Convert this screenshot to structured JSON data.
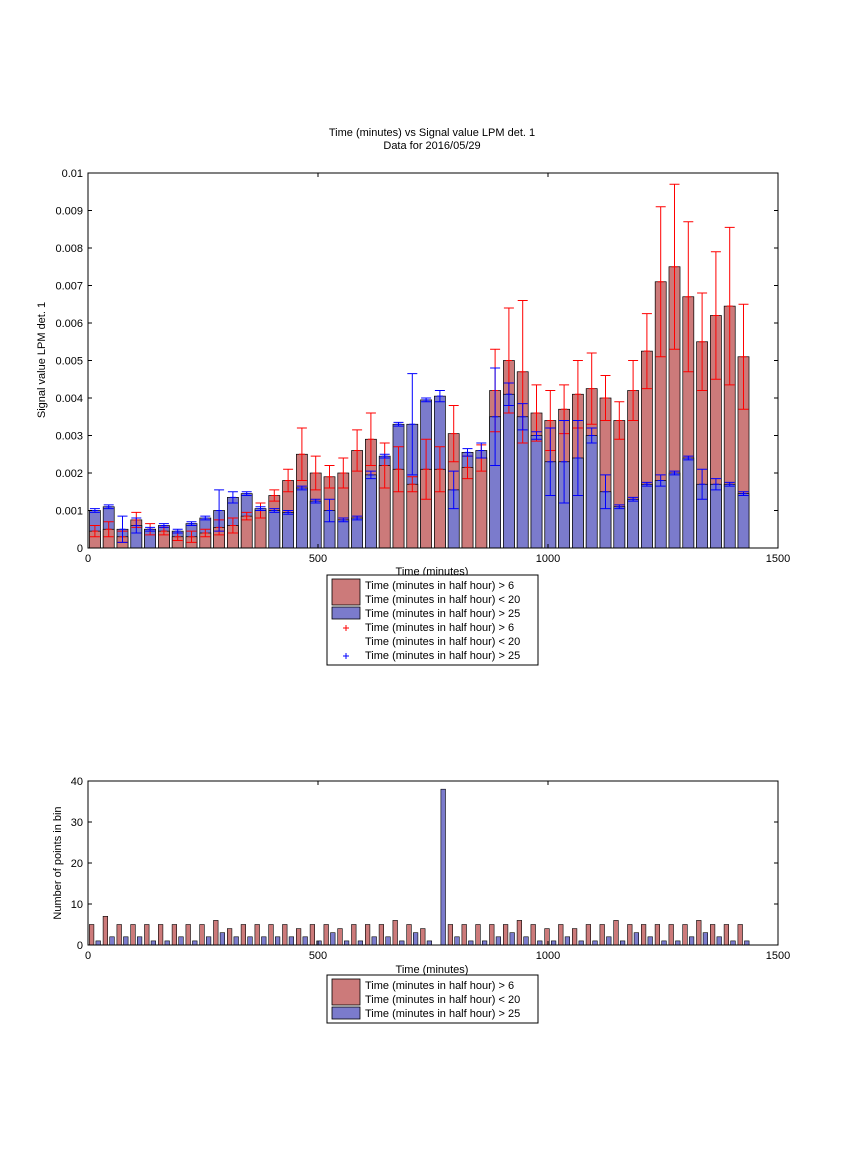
{
  "chart_data": [
    {
      "type": "bar",
      "title": "Time (minutes) vs Signal value LPM det. 1",
      "subtitle": "Data for 2016/05/29",
      "xlabel": "Time (minutes)",
      "ylabel": "Signal value LPM det. 1",
      "xlim": [
        0,
        1500
      ],
      "ylim": [
        0,
        0.01
      ],
      "xticks": [
        0,
        500,
        1000,
        1500
      ],
      "yticks": [
        0,
        0.001,
        0.002,
        0.003,
        0.004,
        0.005,
        0.006,
        0.007,
        0.008,
        0.009,
        0.01
      ],
      "ytick_labels": [
        "0",
        "0.001",
        "0.002",
        "0.003",
        "0.004",
        "0.005",
        "0.006",
        "0.007",
        "0.008",
        "0.009",
        "0.01"
      ],
      "legend_position": "below",
      "legend": [
        {
          "kind": "patch",
          "color": "#cc7a7a",
          "lines": [
            "Time (minutes in half hour) > 6",
            "Time (minutes in half hour) < 20"
          ]
        },
        {
          "kind": "patch",
          "color": "#7b7bcc",
          "lines": [
            "Time (minutes in half hour) > 25"
          ]
        },
        {
          "kind": "marker",
          "color": "#ff0000",
          "lines": [
            "Time (minutes in half hour) > 6",
            "Time (minutes in half hour) < 20"
          ]
        },
        {
          "kind": "marker",
          "color": "#0000ff",
          "lines": [
            "Time (minutes in half hour) > 25"
          ]
        }
      ],
      "x": [
        15,
        45,
        75,
        105,
        135,
        165,
        195,
        225,
        255,
        285,
        315,
        345,
        375,
        405,
        435,
        465,
        495,
        525,
        555,
        585,
        615,
        645,
        675,
        705,
        735,
        765,
        795,
        825,
        855,
        885,
        915,
        945,
        975,
        1005,
        1035,
        1065,
        1095,
        1125,
        1155,
        1185,
        1215,
        1245,
        1275,
        1305,
        1335,
        1365,
        1395,
        1425
      ],
      "series": [
        {
          "name": "Time (minutes in half hour) > 6\nTime (minutes in half hour) < 20",
          "color": "#cc7a7a",
          "error_color": "#ff0000",
          "values": [
            0.00045,
            0.0005,
            0.0003,
            0.00075,
            0.0005,
            0.00045,
            0.0003,
            0.0003,
            0.0004,
            0.00055,
            0.0006,
            0.00085,
            0.001,
            0.0014,
            0.0018,
            0.0025,
            0.002,
            0.0019,
            0.002,
            0.0026,
            0.0029,
            0.0022,
            0.0021,
            0.0017,
            0.0021,
            0.0021,
            0.00305,
            0.00215,
            0.0024,
            0.0042,
            0.005,
            0.0047,
            0.0036,
            0.0034,
            0.0037,
            0.0041,
            0.00425,
            0.004,
            0.0034,
            0.0042,
            0.00525,
            0.0071,
            0.0075,
            0.0067,
            0.0055,
            0.0062,
            0.00645,
            0.0051
          ],
          "errors": [
            0.00015,
            0.0002,
            0.00015,
            0.0002,
            0.00015,
            0.0001,
            0.0001,
            0.00015,
            0.0001,
            0.0002,
            0.0002,
            0.0001,
            0.0002,
            0.00015,
            0.0003,
            0.0007,
            0.00045,
            0.0003,
            0.0004,
            0.00055,
            0.0007,
            0.0006,
            0.0006,
            0.0002,
            0.0008,
            0.0006,
            0.00075,
            0.0003,
            0.00035,
            0.0011,
            0.0014,
            0.0019,
            0.00075,
            0.0008,
            0.00065,
            0.0009,
            0.00095,
            0.0006,
            0.0005,
            0.0008,
            0.001,
            0.002,
            0.0022,
            0.002,
            0.0013,
            0.0017,
            0.0021,
            0.0014
          ]
        },
        {
          "name": "Time (minutes in half hour) > 25",
          "color": "#7b7bcc",
          "error_color": "#0000ff",
          "values": [
            0.001,
            0.0011,
            0.0005,
            0.0006,
            0.0005,
            0.0006,
            0.00045,
            0.00065,
            0.0008,
            0.001,
            0.00135,
            0.00145,
            0.00105,
            0.001,
            0.00095,
            0.0016,
            0.00125,
            0.001,
            0.00075,
            0.0008,
            0.00195,
            0.00245,
            0.0033,
            0.0033,
            0.00395,
            0.00405,
            0.00155,
            0.00255,
            0.0026,
            0.0035,
            0.0041,
            0.0035,
            0.003,
            0.0023,
            0.0023,
            0.0024,
            0.003,
            0.0015,
            0.0011,
            0.0013,
            0.0017,
            0.0018,
            0.002,
            0.0024,
            0.0017,
            0.0017,
            0.0017,
            0.00145
          ],
          "errors": [
            5e-05,
            5e-05,
            0.00035,
            0.0002,
            5e-05,
            5e-05,
            5e-05,
            5e-05,
            5e-05,
            0.00055,
            0.00015,
            5e-05,
            5e-05,
            5e-05,
            5e-05,
            5e-05,
            5e-05,
            0.0003,
            5e-05,
            5e-05,
            0.0001,
            5e-05,
            5e-05,
            0.00135,
            5e-05,
            0.00015,
            0.0005,
            0.0001,
            0.0002,
            0.0013,
            0.0003,
            0.00035,
            0.0001,
            0.0009,
            0.0011,
            0.001,
            0.0002,
            0.00045,
            5e-05,
            5e-05,
            5e-05,
            0.00015,
            5e-05,
            5e-05,
            0.0004,
            0.00015,
            5e-05,
            5e-05
          ]
        }
      ]
    },
    {
      "type": "bar",
      "title": "",
      "xlabel": "Time (minutes)",
      "ylabel": "Number of points in bin",
      "xlim": [
        0,
        1500
      ],
      "ylim": [
        0,
        40
      ],
      "xticks": [
        0,
        500,
        1000,
        1500
      ],
      "yticks": [
        0,
        10,
        20,
        30,
        40
      ],
      "legend_position": "below",
      "legend": [
        {
          "kind": "patch",
          "color": "#cc7a7a",
          "lines": [
            "Time (minutes in half hour) > 6",
            "Time (minutes in half hour) < 20"
          ]
        },
        {
          "kind": "patch",
          "color": "#7b7bcc",
          "lines": [
            "Time (minutes in half hour) > 25"
          ]
        }
      ],
      "x": [
        15,
        45,
        75,
        105,
        135,
        165,
        195,
        225,
        255,
        285,
        315,
        345,
        375,
        405,
        435,
        465,
        495,
        525,
        555,
        585,
        615,
        645,
        675,
        705,
        735,
        765,
        795,
        825,
        855,
        885,
        915,
        945,
        975,
        1005,
        1035,
        1065,
        1095,
        1125,
        1155,
        1185,
        1215,
        1245,
        1275,
        1305,
        1335,
        1365,
        1395,
        1425
      ],
      "series": [
        {
          "name": "Time (minutes in half hour) > 6\nTime (minutes in half hour) < 20",
          "color": "#cc7a7a",
          "values": [
            5,
            7,
            5,
            5,
            5,
            5,
            5,
            5,
            5,
            6,
            4,
            5,
            5,
            5,
            5,
            4,
            5,
            5,
            4,
            5,
            5,
            5,
            6,
            5,
            4,
            0,
            5,
            5,
            5,
            5,
            5,
            6,
            5,
            4,
            5,
            4,
            5,
            5,
            6,
            5,
            5,
            5,
            5,
            5,
            6,
            5,
            5,
            5
          ]
        },
        {
          "name": "Time (minutes in half hour) > 25",
          "color": "#7b7bcc",
          "values": [
            1,
            2,
            2,
            2,
            1,
            1,
            2,
            1,
            2,
            3,
            2,
            2,
            2,
            2,
            2,
            2,
            1,
            3,
            1,
            1,
            2,
            2,
            1,
            3,
            1,
            38,
            2,
            1,
            1,
            2,
            3,
            2,
            1,
            1,
            2,
            1,
            1,
            2,
            1,
            3,
            2,
            1,
            1,
            2,
            3,
            2,
            1,
            1
          ]
        }
      ]
    }
  ]
}
